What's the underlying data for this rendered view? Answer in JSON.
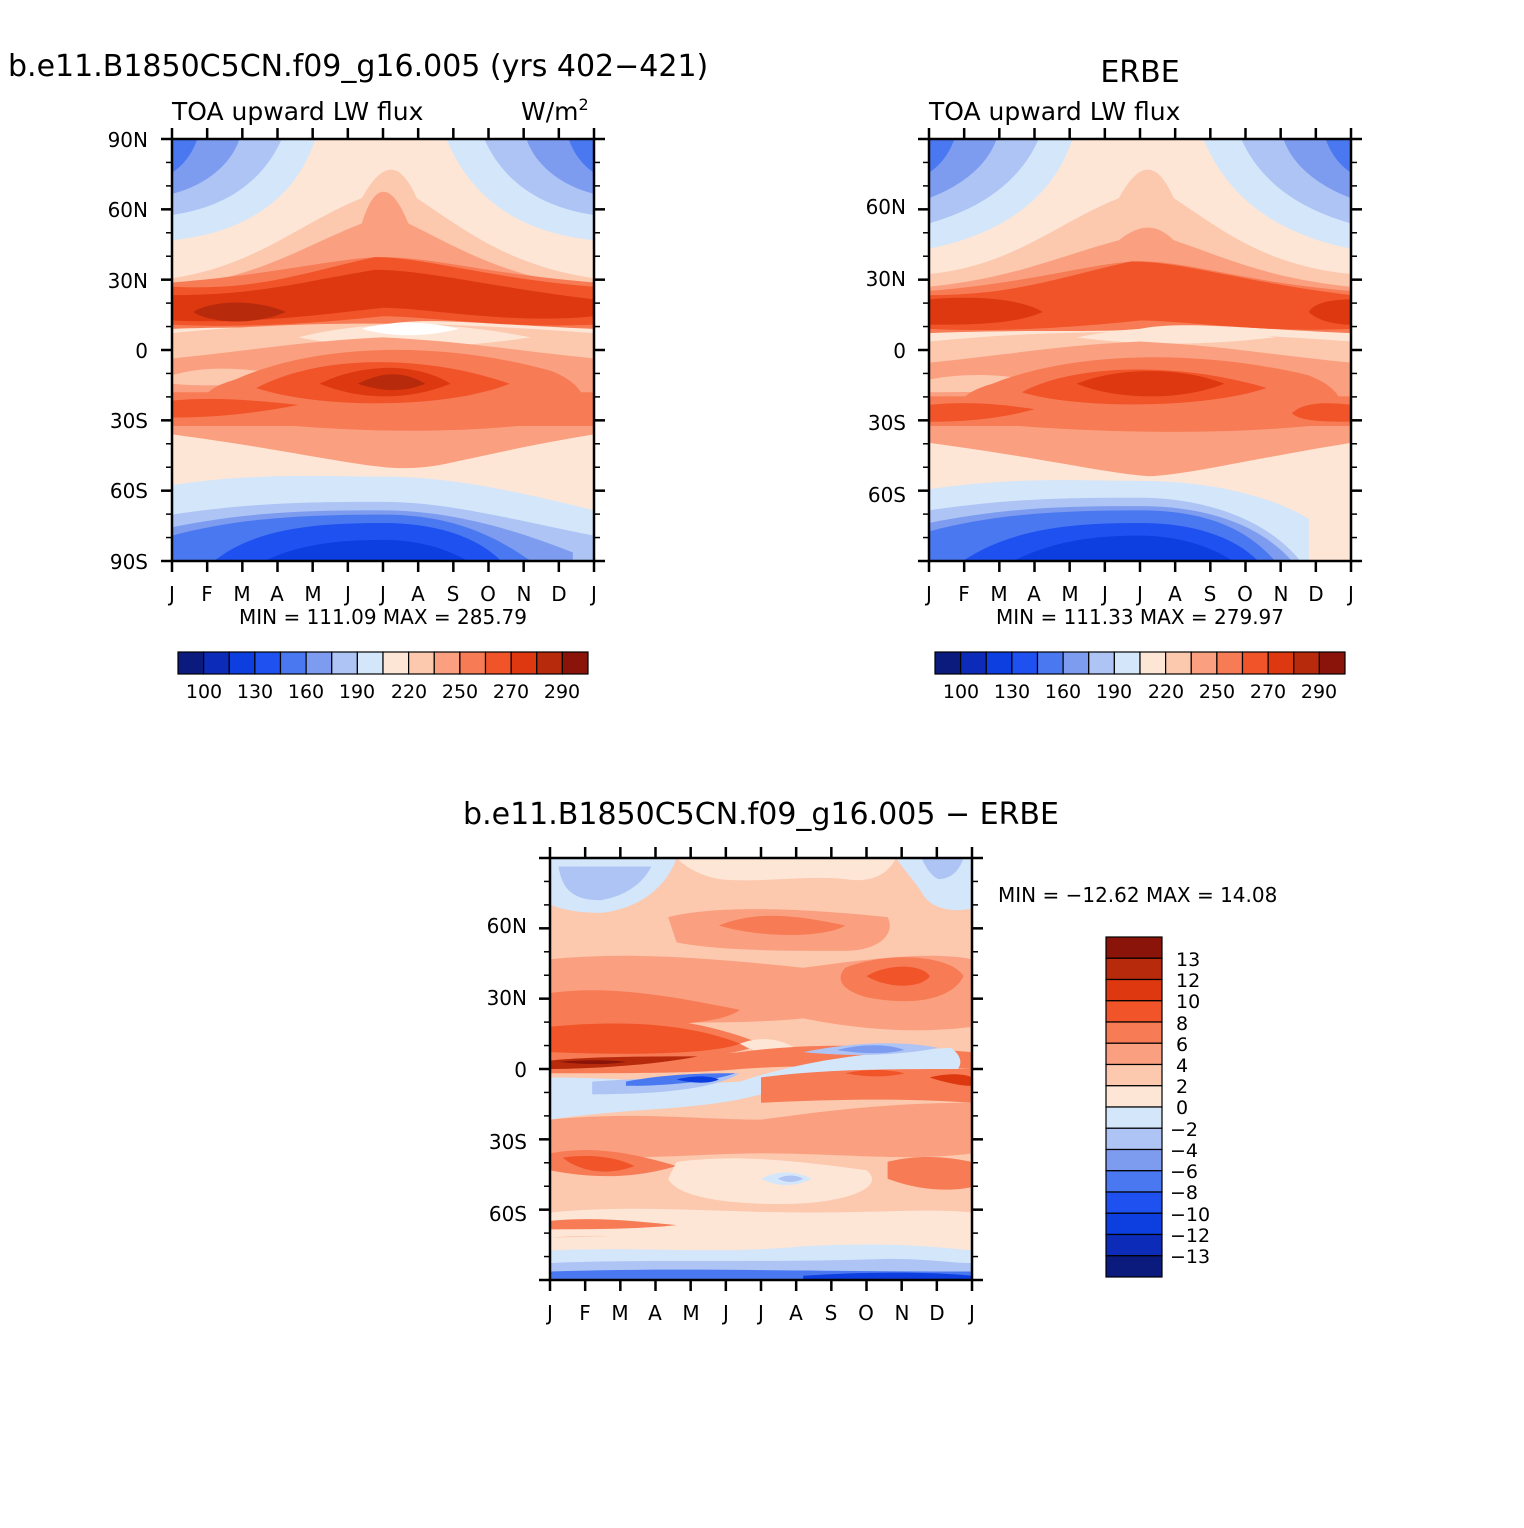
{
  "colors": {
    "model_obs_scale": [
      "#0a1a7d",
      "#0b2bb8",
      "#0c3ee0",
      "#1f50f0",
      "#4a78f0",
      "#7d9cf0",
      "#adc4f5",
      "#d4e6fa",
      "#fde6d6",
      "#fcc8ae",
      "#faa080",
      "#f77b55",
      "#f05428",
      "#dd3810",
      "#b82a0c",
      "#8a1409"
    ],
    "diff_scale": [
      "#0a1a7d",
      "#0b2bb8",
      "#0c3ee0",
      "#1f50f0",
      "#4a78f0",
      "#7d9cf0",
      "#adc4f5",
      "#d4e6fa",
      "#fde6d6",
      "#fcc8ae",
      "#faa080",
      "#f77b55",
      "#f05428",
      "#dd3810",
      "#b82a0c",
      "#8a1409"
    ]
  },
  "chart_data": [
    {
      "type": "heatmap",
      "title": "b.e11.B1850C5CN.f09_g16.005 (yrs 402−421)",
      "left_string": "TOA upward LW flux",
      "units": "W/m",
      "units_sup": "2",
      "x": [
        "J",
        "F",
        "M",
        "A",
        "M",
        "J",
        "J",
        "A",
        "S",
        "O",
        "N",
        "D",
        "J"
      ],
      "y_ticks": [
        "90N",
        "60N",
        "30N",
        "0",
        "30S",
        "60S",
        "90S"
      ],
      "min": "111.09",
      "max": "285.79",
      "stat_text": "MIN =  111.09  MAX =  285.79",
      "colorbar_labels": [
        "100",
        "130",
        "160",
        "190",
        "220",
        "250",
        "270",
        "290"
      ]
    },
    {
      "type": "heatmap",
      "title": "ERBE",
      "left_string": "TOA upward LW flux",
      "x": [
        "J",
        "F",
        "M",
        "A",
        "M",
        "J",
        "J",
        "A",
        "S",
        "O",
        "N",
        "D",
        "J"
      ],
      "y_ticks": [
        "60N",
        "30N",
        "0",
        "30S",
        "60S"
      ],
      "min": "111.33",
      "max": "279.97",
      "stat_text": "MIN =  111.33  MAX =  279.97",
      "colorbar_labels": [
        "100",
        "130",
        "160",
        "190",
        "220",
        "250",
        "270",
        "290"
      ]
    },
    {
      "type": "heatmap",
      "title": "b.e11.B1850C5CN.f09_g16.005 − ERBE",
      "x": [
        "J",
        "F",
        "M",
        "A",
        "M",
        "J",
        "J",
        "A",
        "S",
        "O",
        "N",
        "D",
        "J"
      ],
      "y_ticks": [
        "60N",
        "30N",
        "0",
        "30S",
        "60S"
      ],
      "min": "−12.62",
      "max": "14.08",
      "stat_text": "MIN =  −12.62  MAX =   14.08",
      "colorbar_labels": [
        "13",
        "12",
        "10",
        "8",
        "6",
        "4",
        "2",
        "0",
        "−2",
        "−4",
        "−6",
        "−8",
        "−10",
        "−12",
        "−13"
      ]
    }
  ]
}
